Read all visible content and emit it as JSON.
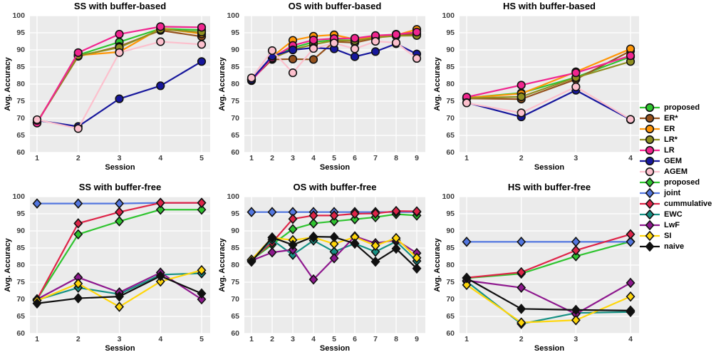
{
  "figure": {
    "background": "#ffffff",
    "panel_background": "#ebebeb",
    "grid_color": "#ffffff",
    "tick_color": "#3f3f3f",
    "marker_outline": "#111111"
  },
  "legend": {
    "items": [
      {
        "label": "proposed",
        "color": "#2fc42f",
        "marker": "circle"
      },
      {
        "label": "ER*",
        "color": "#96521e",
        "marker": "circle"
      },
      {
        "label": "ER",
        "color": "#ff9607",
        "marker": "circle"
      },
      {
        "label": "LR*",
        "color": "#8f8f20",
        "marker": "circle"
      },
      {
        "label": "LR",
        "color": "#f0258f",
        "marker": "circle"
      },
      {
        "label": "GEM",
        "color": "#17179c",
        "marker": "circle"
      },
      {
        "label": "AGEM",
        "color": "#fcc0cd",
        "marker": "circle"
      },
      {
        "label": "proposed",
        "color": "#2fc42f",
        "marker": "diamond"
      },
      {
        "label": "joint",
        "color": "#5377e0",
        "marker": "diamond"
      },
      {
        "label": "cummulative",
        "color": "#de2448",
        "marker": "diamond"
      },
      {
        "label": "EWC",
        "color": "#169184",
        "marker": "diamond"
      },
      {
        "label": "LwF",
        "color": "#8e188e",
        "marker": "diamond"
      },
      {
        "label": "SI",
        "color": "#ffd60a",
        "marker": "diamond"
      },
      {
        "label": "naive",
        "color": "#101010",
        "marker": "diamond"
      }
    ]
  },
  "chart_data": [
    {
      "type": "line",
      "title": "SS with buffer-based",
      "xlabel": "Session",
      "ylabel": "Avg. Accuracy",
      "x": [
        1,
        2,
        3,
        4,
        5
      ],
      "ylim": [
        60,
        100
      ],
      "yticks": [
        60,
        65,
        70,
        75,
        80,
        85,
        90,
        95,
        100
      ],
      "grid": true,
      "series": [
        {
          "name": "proposed",
          "color": "#2fc42f",
          "marker": "circle",
          "values": [
            68.8,
            88.5,
            92.3,
            96.2,
            95.8
          ]
        },
        {
          "name": "ER*",
          "color": "#96521e",
          "marker": "circle",
          "values": [
            68.8,
            88.1,
            91.0,
            95.7,
            93.9
          ]
        },
        {
          "name": "ER",
          "color": "#ff9607",
          "marker": "circle",
          "values": [
            68.8,
            88.4,
            89.4,
            96.3,
            94.7
          ]
        },
        {
          "name": "LR*",
          "color": "#8f8f20",
          "marker": "circle",
          "values": [
            68.8,
            88.3,
            90.7,
            96.0,
            95.2
          ]
        },
        {
          "name": "LR",
          "color": "#f0258f",
          "marker": "circle",
          "values": [
            68.6,
            89.2,
            94.6,
            96.8,
            96.6
          ]
        },
        {
          "name": "GEM",
          "color": "#17179c",
          "marker": "circle",
          "values": [
            69.4,
            67.6,
            75.7,
            79.5,
            86.6
          ]
        },
        {
          "name": "AGEM",
          "color": "#fcc0cd",
          "marker": "circle",
          "values": [
            69.6,
            67.0,
            89.2,
            92.4,
            91.6
          ]
        }
      ]
    },
    {
      "type": "line",
      "title": "OS with buffer-based",
      "xlabel": "Session",
      "ylabel": "Avg. Accuracy",
      "x": [
        1,
        2,
        3,
        4,
        5,
        6,
        7,
        8,
        9
      ],
      "ylim": [
        60,
        100
      ],
      "yticks": [
        60,
        65,
        70,
        75,
        80,
        85,
        90,
        95,
        100
      ],
      "grid": true,
      "series": [
        {
          "name": "proposed",
          "color": "#2fc42f",
          "marker": "circle",
          "values": [
            81.5,
            87.8,
            90.6,
            92.3,
            92.9,
            92.8,
            93.8,
            94.3,
            94.8
          ]
        },
        {
          "name": "ER*",
          "color": "#96521e",
          "marker": "circle",
          "values": [
            81.3,
            87.2,
            87.3,
            87.2,
            92.4,
            92.1,
            93.4,
            94.6,
            94.5
          ]
        },
        {
          "name": "ER",
          "color": "#ff9607",
          "marker": "circle",
          "values": [
            81.4,
            88.0,
            92.8,
            94.0,
            94.4,
            93.1,
            94.0,
            94.3,
            96.0
          ]
        },
        {
          "name": "LR*",
          "color": "#8f8f20",
          "marker": "circle",
          "values": [
            81.4,
            87.5,
            90.1,
            91.6,
            92.7,
            92.7,
            93.6,
            94.1,
            94.2
          ]
        },
        {
          "name": "LR",
          "color": "#f0258f",
          "marker": "circle",
          "values": [
            81.0,
            87.7,
            91.3,
            92.9,
            93.3,
            93.4,
            94.2,
            94.5,
            95.2
          ]
        },
        {
          "name": "GEM",
          "color": "#17179c",
          "marker": "circle",
          "values": [
            81.3,
            88.2,
            90.0,
            90.6,
            90.3,
            88.0,
            89.5,
            91.8,
            88.8
          ]
        },
        {
          "name": "AGEM",
          "color": "#fcc0cd",
          "marker": "circle",
          "values": [
            81.8,
            89.8,
            83.3,
            90.4,
            92.0,
            90.3,
            92.5,
            92.1,
            87.5
          ]
        }
      ]
    },
    {
      "type": "line",
      "title": "HS with buffer-based",
      "xlabel": "Session",
      "ylabel": "Avg. Accuracy",
      "x": [
        1,
        2,
        3,
        4
      ],
      "ylim": [
        60,
        100
      ],
      "yticks": [
        60,
        65,
        70,
        75,
        80,
        85,
        90,
        95,
        100
      ],
      "grid": true,
      "series": [
        {
          "name": "proposed",
          "color": "#2fc42f",
          "marker": "circle",
          "values": [
            76.0,
            77.4,
            82.0,
            88.0
          ]
        },
        {
          "name": "ER*",
          "color": "#96521e",
          "marker": "circle",
          "values": [
            75.8,
            75.6,
            81.4,
            89.7
          ]
        },
        {
          "name": "ER",
          "color": "#ff9607",
          "marker": "circle",
          "values": [
            76.0,
            77.2,
            83.6,
            90.3
          ]
        },
        {
          "name": "LR*",
          "color": "#8f8f20",
          "marker": "circle",
          "values": [
            75.9,
            76.3,
            81.9,
            86.6
          ]
        },
        {
          "name": "LR",
          "color": "#f0258f",
          "marker": "circle",
          "values": [
            76.2,
            79.7,
            83.3,
            88.3
          ]
        },
        {
          "name": "GEM",
          "color": "#17179c",
          "marker": "circle",
          "values": [
            74.6,
            70.4,
            78.2,
            69.6
          ]
        },
        {
          "name": "AGEM",
          "color": "#fcc0cd",
          "marker": "circle",
          "values": [
            74.5,
            71.6,
            79.2,
            69.7
          ]
        }
      ]
    },
    {
      "type": "line",
      "title": "SS with buffer-free",
      "xlabel": "Session",
      "ylabel": "Avg. Accuracy",
      "x": [
        1,
        2,
        3,
        4,
        5
      ],
      "ylim": [
        60,
        100
      ],
      "yticks": [
        60,
        65,
        70,
        75,
        80,
        85,
        90,
        95,
        100
      ],
      "grid": true,
      "series": [
        {
          "name": "proposed",
          "color": "#2fc42f",
          "marker": "diamond",
          "values": [
            70.0,
            89.0,
            92.8,
            96.2,
            96.2
          ]
        },
        {
          "name": "joint",
          "color": "#5377e0",
          "marker": "diamond",
          "values": [
            98.0,
            98.0,
            98.0,
            98.2,
            98.2
          ]
        },
        {
          "name": "cummulative",
          "color": "#de2448",
          "marker": "diamond",
          "values": [
            70.0,
            92.2,
            95.5,
            98.2,
            98.2
          ]
        },
        {
          "name": "EWC",
          "color": "#169184",
          "marker": "diamond",
          "values": [
            69.8,
            73.4,
            71.5,
            77.2,
            77.6
          ]
        },
        {
          "name": "LwF",
          "color": "#8e188e",
          "marker": "diamond",
          "values": [
            70.0,
            76.4,
            72.0,
            77.8,
            70.0
          ]
        },
        {
          "name": "SI",
          "color": "#ffd60a",
          "marker": "diamond",
          "values": [
            69.6,
            74.6,
            67.8,
            75.2,
            78.5
          ]
        },
        {
          "name": "naive",
          "color": "#101010",
          "marker": "diamond",
          "values": [
            68.8,
            70.3,
            70.8,
            76.8,
            71.7
          ]
        }
      ]
    },
    {
      "type": "line",
      "title": "OS with buffer-free",
      "xlabel": "Session",
      "ylabel": "Avg. Accuracy",
      "x": [
        1,
        2,
        3,
        4,
        5,
        6,
        7,
        8,
        9
      ],
      "ylim": [
        60,
        100
      ],
      "yticks": [
        60,
        65,
        70,
        75,
        80,
        85,
        90,
        95,
        100
      ],
      "grid": true,
      "series": [
        {
          "name": "proposed",
          "color": "#2fc42f",
          "marker": "diamond",
          "values": [
            81.5,
            86.0,
            90.5,
            92.2,
            92.8,
            93.4,
            94.0,
            94.9,
            94.5
          ]
        },
        {
          "name": "joint",
          "color": "#5377e0",
          "marker": "diamond",
          "values": [
            95.5,
            95.5,
            95.5,
            95.5,
            95.5,
            95.5,
            95.5,
            95.5,
            95.5
          ]
        },
        {
          "name": "cummulative",
          "color": "#de2448",
          "marker": "diamond",
          "values": [
            81.5,
            86.6,
            93.5,
            94.5,
            94.5,
            95.0,
            95.1,
            95.8,
            95.7
          ]
        },
        {
          "name": "EWC",
          "color": "#169184",
          "marker": "diamond",
          "values": [
            81.3,
            87.4,
            83.0,
            87.2,
            83.9,
            86.3,
            83.9,
            86.9,
            81.2
          ]
        },
        {
          "name": "LwF",
          "color": "#8e188e",
          "marker": "diamond",
          "values": [
            81.3,
            83.7,
            84.5,
            75.8,
            82.0,
            88.4,
            86.4,
            87.3,
            83.5
          ]
        },
        {
          "name": "SI",
          "color": "#ffd60a",
          "marker": "diamond",
          "values": [
            81.6,
            88.0,
            87.3,
            88.1,
            86.2,
            88.2,
            85.7,
            87.9,
            82.1
          ]
        },
        {
          "name": "naive",
          "color": "#101010",
          "marker": "diamond",
          "values": [
            81.0,
            88.1,
            85.9,
            88.3,
            88.2,
            86.3,
            81.0,
            84.8,
            79.0
          ]
        }
      ]
    },
    {
      "type": "line",
      "title": "HS with buffer-free",
      "xlabel": "Session",
      "ylabel": "Avg. Accuracy",
      "x": [
        1,
        2,
        3,
        4
      ],
      "ylim": [
        60,
        100
      ],
      "yticks": [
        60,
        65,
        70,
        75,
        80,
        85,
        90,
        95,
        100
      ],
      "grid": true,
      "series": [
        {
          "name": "proposed",
          "color": "#2fc42f",
          "marker": "diamond",
          "values": [
            76.2,
            77.5,
            82.6,
            86.9
          ]
        },
        {
          "name": "joint",
          "color": "#5377e0",
          "marker": "diamond",
          "values": [
            86.8,
            86.8,
            86.8,
            86.8
          ]
        },
        {
          "name": "cummulative",
          "color": "#de2448",
          "marker": "diamond",
          "values": [
            76.3,
            77.9,
            84.3,
            89.0
          ]
        },
        {
          "name": "EWC",
          "color": "#169184",
          "marker": "diamond",
          "values": [
            75.2,
            62.8,
            66.0,
            66.3
          ]
        },
        {
          "name": "LwF",
          "color": "#8e188e",
          "marker": "diamond",
          "values": [
            75.5,
            73.4,
            65.7,
            74.8
          ]
        },
        {
          "name": "SI",
          "color": "#ffd60a",
          "marker": "diamond",
          "values": [
            74.2,
            63.2,
            63.9,
            70.8
          ]
        },
        {
          "name": "naive",
          "color": "#101010",
          "marker": "diamond",
          "values": [
            76.2,
            67.2,
            66.9,
            66.7
          ]
        }
      ]
    }
  ]
}
